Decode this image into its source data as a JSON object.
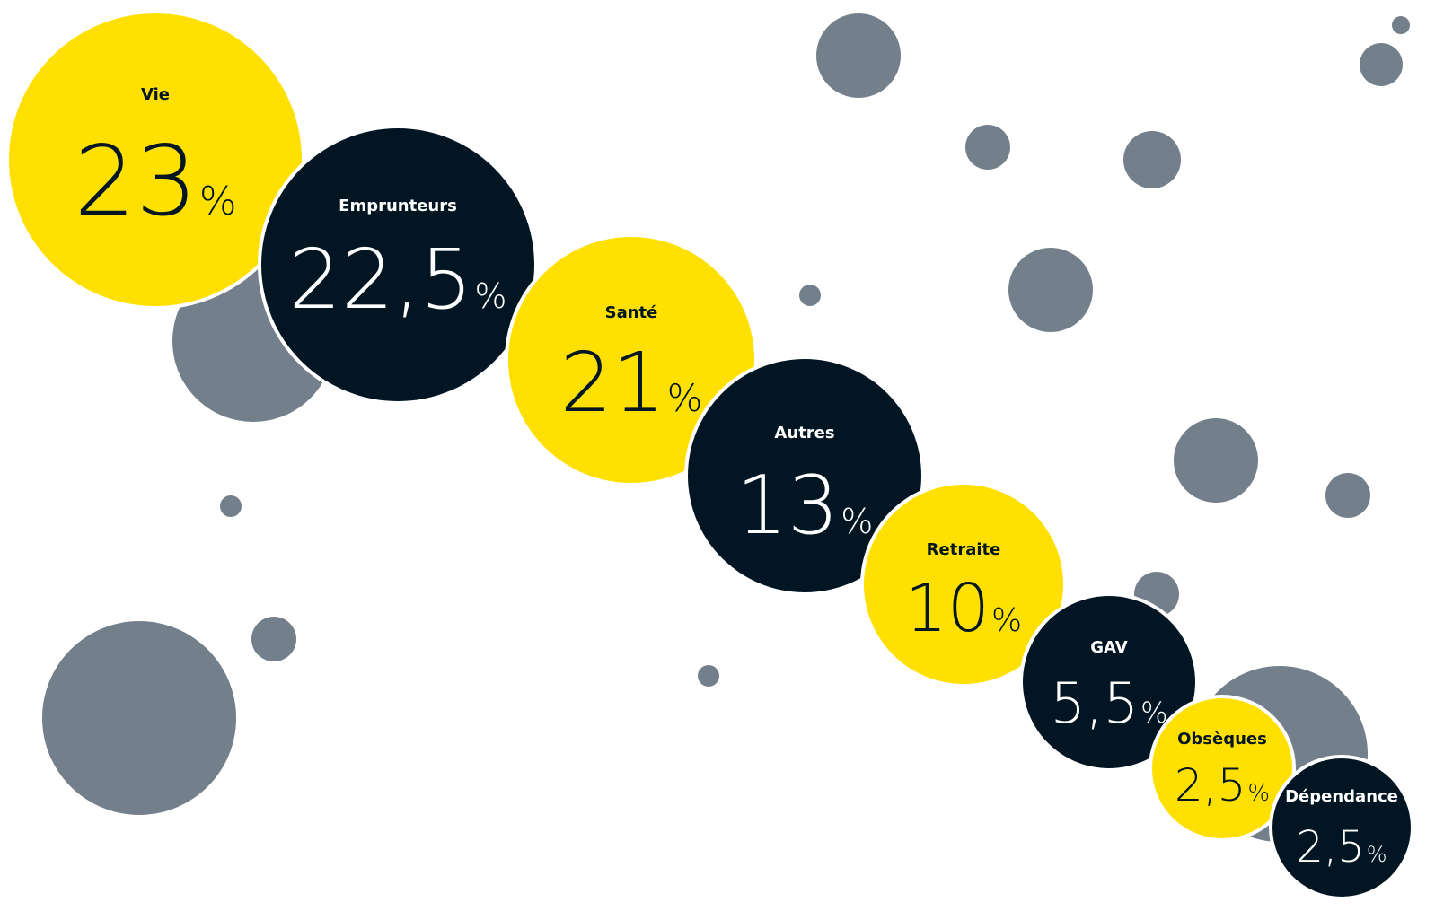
{
  "chart_data": {
    "type": "bubble",
    "unit": "%",
    "categories": [
      "Vie",
      "Emprunteurs",
      "Santé",
      "Autres",
      "Retraite",
      "GAV",
      "Obsèques",
      "Dépendance"
    ],
    "labels_display": [
      "23",
      "22,5",
      "21",
      "13",
      "10",
      "5,5",
      "2,5",
      "2,5"
    ],
    "values": [
      23,
      22.5,
      21,
      13,
      10,
      5.5,
      2.5,
      2.5
    ],
    "colors": [
      "#FFE000",
      "#011522",
      "#FFE000",
      "#011522",
      "#FFE000",
      "#011522",
      "#FFE000",
      "#011522"
    ],
    "text_colors": [
      "#011522",
      "#FFFFFF",
      "#011522",
      "#FFFFFF",
      "#011522",
      "#FFFFFF",
      "#011522",
      "#FFFFFF"
    ]
  },
  "colors": {
    "background": "#FFFFFF",
    "accent_yellow": "#FFE000",
    "accent_navy": "#011522",
    "decor_grey": "#737F8B"
  }
}
